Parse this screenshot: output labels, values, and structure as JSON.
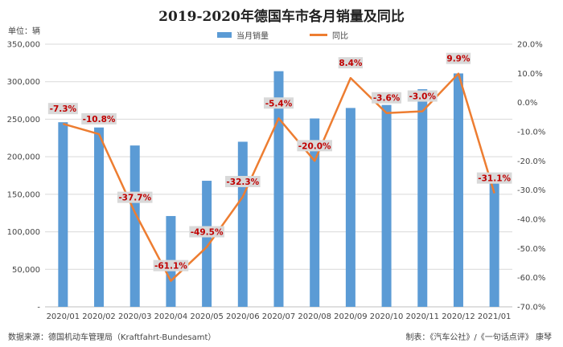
{
  "title": "2019-2020年德国车市各月销量及同比",
  "unit_label": "单位：辆",
  "source": "数据来源：德国机动车管理局（Kraftfahrt-Bundesamt）",
  "credit": "制表：《汽车公社》/《一句话点评》  康琴",
  "colors": {
    "bar": "#5b9bd5",
    "line": "#ed7d31",
    "label_text": "#c00000",
    "label_bg": "#d9d9d9"
  },
  "chart_data": {
    "type": "bar",
    "categories": [
      "2020/01",
      "2020/02",
      "2020/03",
      "2020/04",
      "2020/05",
      "2020/06",
      "2020/07",
      "2020/08",
      "2020/09",
      "2020/10",
      "2020/11",
      "2020/12",
      "2021/01"
    ],
    "series": [
      {
        "name": "当月销量",
        "type": "bar",
        "axis": "left",
        "values": [
          246000,
          239000,
          215000,
          121000,
          168000,
          220000,
          314000,
          251000,
          265000,
          269000,
          290000,
          311000,
          169000
        ]
      },
      {
        "name": "同比",
        "type": "line",
        "axis": "right",
        "values": [
          -7.3,
          -10.8,
          -37.7,
          -61.1,
          -49.5,
          -32.3,
          -5.4,
          -20.0,
          8.4,
          -3.6,
          -3.0,
          9.9,
          -31.1
        ],
        "labels": [
          "-7.3%",
          "-10.8%",
          "-37.7%",
          "-61.1%",
          "-49.5%",
          "-32.3%",
          "-5.4%",
          "-20.0%",
          "8.4%",
          "-3.6%",
          "-3.0%",
          "9.9%",
          "-31.1%"
        ]
      }
    ],
    "y_left": {
      "min": 0,
      "max": 350000,
      "ticks": [
        0,
        50000,
        100000,
        150000,
        200000,
        250000,
        300000,
        350000
      ],
      "tick_labels": [
        "-",
        "50,000",
        "100,000",
        "150,000",
        "200,000",
        "250,000",
        "300,000",
        "350,000"
      ]
    },
    "y_right": {
      "min": -70,
      "max": 20,
      "ticks": [
        -70,
        -60,
        -50,
        -40,
        -30,
        -20,
        -10,
        0,
        10,
        20
      ],
      "tick_labels": [
        "-70.0%",
        "-60.0%",
        "-50.0%",
        "-40.0%",
        "-30.0%",
        "-20.0%",
        "-10.0%",
        "0.0%",
        "10.0%",
        "20.0%"
      ]
    },
    "legend_position": "top-center",
    "grid": true
  }
}
